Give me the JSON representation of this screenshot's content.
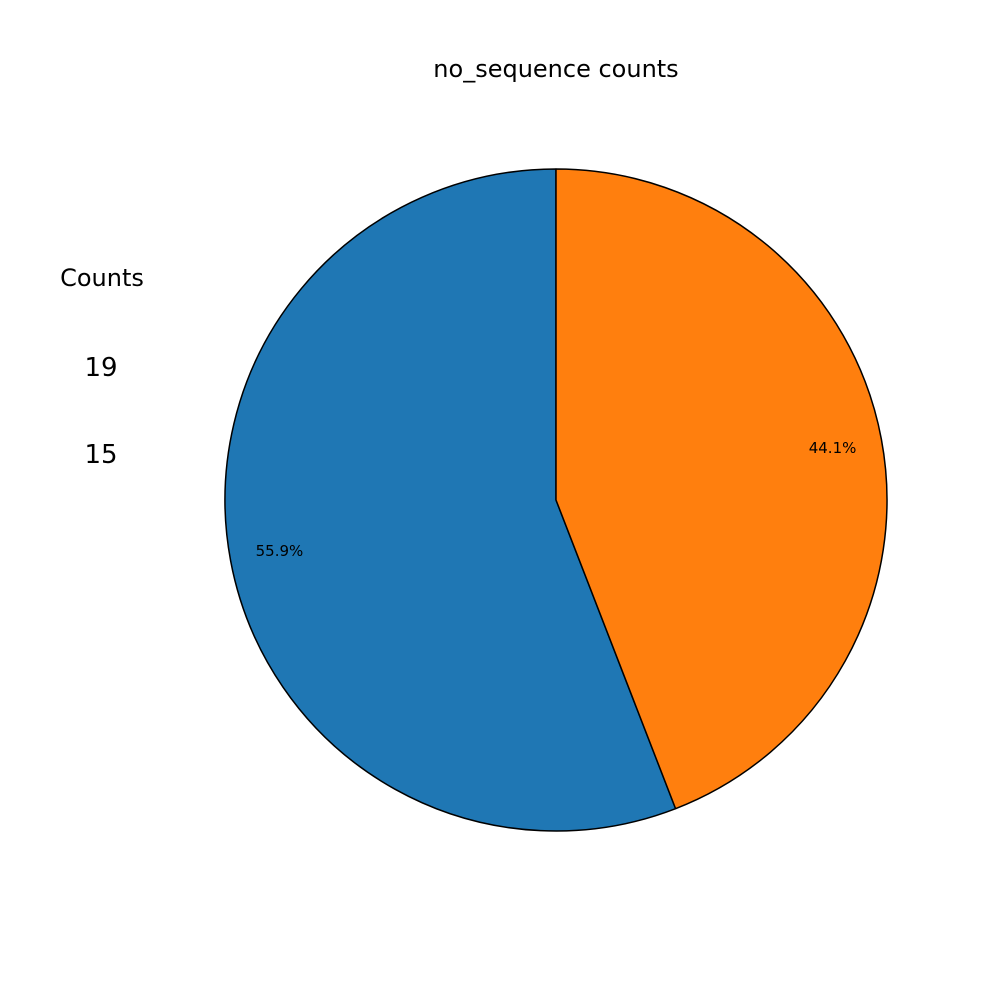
{
  "chart_data": {
    "type": "pie",
    "title": "no_sequence counts",
    "side_header": "Counts",
    "values": [
      19,
      15
    ],
    "value_labels": [
      "19",
      "15"
    ],
    "percent_labels": [
      "55.9%",
      "44.1%"
    ],
    "colors": [
      "#1f77b4",
      "#ff7f0e"
    ],
    "edge_color": "#000000",
    "start_angle_deg": 90,
    "direction": "counterclockwise"
  }
}
